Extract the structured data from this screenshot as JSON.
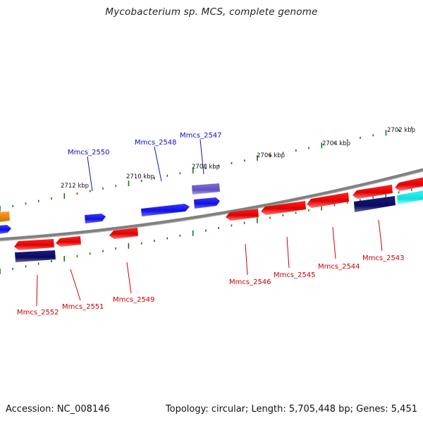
{
  "header": {
    "title": "Mycobacterium sp. MCS, complete genome"
  },
  "footer": {
    "accession": "Accession: NC_008146",
    "summary": "Topology: circular; Length: 5,705,448 bp; Genes: 5,451"
  },
  "colors": {
    "forward": "#1414e6",
    "reverse": "#e60000",
    "dark_navy": "#10106e",
    "cyan": "#10e8ec",
    "purple": "#7060c8",
    "orange": "#f09010",
    "tick": "#117711",
    "backbone": "#808080"
  },
  "scale_labels": [
    "2702 kbp",
    "2704 kbp",
    "2706 kbp",
    "2708 kbp",
    "2710 kbp",
    "2712 kbp"
  ],
  "genes_forward": [
    "Mmcs_2547",
    "Mmcs_2548",
    "Mmcs_2550"
  ],
  "genes_reverse": [
    "Mmcs_2543",
    "Mmcs_2544",
    "Mmcs_2545",
    "Mmcs_2546",
    "Mmcs_2549",
    "Mmcs_2551",
    "Mmcs_2552"
  ]
}
